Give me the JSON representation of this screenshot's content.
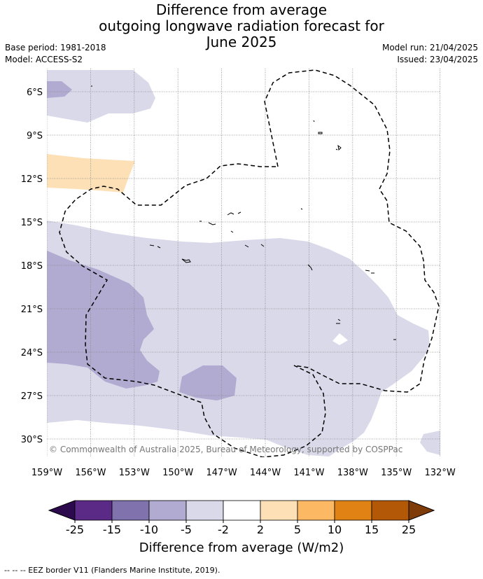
{
  "title": {
    "line1": "Difference from average",
    "line2": "outgoing longwave radiation forecast for",
    "line3": "June 2025"
  },
  "meta_left": {
    "base_period": "Base period: 1981-2018",
    "model": "Model: ACCESS-S2"
  },
  "meta_right": {
    "model_run": "Model run: 21/04/2025",
    "issued": "Issued: 23/04/2025"
  },
  "map": {
    "lat_labels": [
      "6°S",
      "9°S",
      "12°S",
      "15°S",
      "18°S",
      "21°S",
      "24°S",
      "27°S",
      "30°S"
    ],
    "lon_labels": [
      "159°W",
      "156°W",
      "153°W",
      "150°W",
      "147°W",
      "144°W",
      "141°W",
      "138°W",
      "135°W",
      "132°W"
    ],
    "copyright": "© Commonwealth of Australia 2025, Bureau of Meteorology, supported by COSPPac"
  },
  "colorbar": {
    "ticks": [
      "-25",
      "-15",
      "-10",
      "-5",
      "-2",
      "2",
      "5",
      "10",
      "15",
      "25"
    ],
    "colors": [
      "#2d0a4e",
      "#5b2a86",
      "#7f72ad",
      "#b1abd1",
      "#d9d9ea",
      "#ffffff",
      "#fde0b6",
      "#fdb863",
      "#e08214",
      "#b35806",
      "#7f3b08"
    ],
    "label": "Difference from average (W/m2)"
  },
  "footnote": "--  --  -- EEZ border V11 (Flanders Marine Institute, 2019)."
}
